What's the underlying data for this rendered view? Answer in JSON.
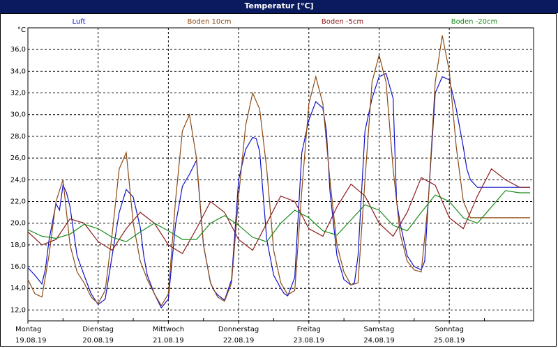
{
  "window": {
    "title": "Temperatur [°C]"
  },
  "chart_data": {
    "type": "line",
    "title": "Temperatur [°C]",
    "ylabel": "°C",
    "ylim": [
      11,
      38
    ],
    "yticks": [
      "12,0",
      "14,0",
      "16,0",
      "18,0",
      "20,0",
      "22,0",
      "24,0",
      "26,0",
      "28,0",
      "30,0",
      "32,0",
      "34,0",
      "36,0"
    ],
    "ytick_values": [
      12,
      14,
      16,
      18,
      20,
      22,
      24,
      26,
      28,
      30,
      32,
      34,
      36
    ],
    "xlim": [
      0,
      7.2
    ],
    "x_tick_values": [
      0,
      1,
      2,
      3,
      4,
      5,
      6
    ],
    "x_day_labels": [
      "Montag",
      "Dienstag",
      "Mittwoch",
      "Donnerstag",
      "Freitag",
      "Samstag",
      "Sonntag"
    ],
    "x_date_labels": [
      "19.08.19",
      "20.08.19",
      "21.08.19",
      "22.08.19",
      "23.08.19",
      "24.08.19",
      "25.08.19"
    ],
    "grid": true,
    "legend_position": "top",
    "series": [
      {
        "name": "Luft",
        "color": "#1010c8",
        "x": [
          0,
          0.1,
          0.2,
          0.25,
          0.3,
          0.4,
          0.45,
          0.5,
          0.55,
          0.6,
          0.7,
          0.8,
          0.9,
          1.0,
          1.1,
          1.2,
          1.25,
          1.3,
          1.4,
          1.5,
          1.6,
          1.65,
          1.7,
          1.8,
          1.9,
          2.0,
          2.1,
          2.2,
          2.3,
          2.4,
          2.5,
          2.6,
          2.65,
          2.7,
          2.8,
          2.9,
          3.0,
          3.1,
          3.2,
          3.25,
          3.3,
          3.4,
          3.5,
          3.6,
          3.65,
          3.7,
          3.8,
          3.9,
          4.0,
          4.1,
          4.2,
          4.25,
          4.3,
          4.4,
          4.5,
          4.6,
          4.65,
          4.7,
          4.8,
          4.9,
          5.0,
          5.1,
          5.2,
          5.25,
          5.3,
          5.4,
          5.5,
          5.6,
          5.65,
          5.7,
          5.8,
          5.9,
          6.0,
          6.1,
          6.2,
          6.25,
          6.3,
          6.4,
          6.5,
          6.6,
          6.65,
          6.7,
          6.8,
          6.9,
          7.0,
          7.1,
          7.15
        ],
        "y": [
          15.9,
          15.2,
          14.4,
          15.8,
          18.4,
          21.8,
          21.2,
          23.5,
          22.8,
          21.5,
          17.0,
          15.2,
          13.5,
          12.5,
          13.0,
          17.0,
          19.0,
          21.0,
          23.1,
          22.4,
          19.6,
          17.0,
          15.2,
          13.5,
          12.2,
          13.0,
          19.8,
          23.4,
          24.5,
          25.8,
          18.0,
          14.5,
          13.8,
          13.4,
          12.9,
          14.8,
          24.0,
          26.8,
          27.9,
          27.8,
          26.6,
          18.5,
          15.2,
          14.0,
          13.5,
          13.3,
          15.0,
          26.5,
          29.5,
          31.2,
          30.6,
          28.5,
          23.0,
          17.0,
          14.8,
          14.3,
          14.5,
          17.0,
          28.5,
          31.5,
          33.5,
          33.8,
          31.5,
          22.0,
          20.0,
          17.0,
          16.0,
          15.7,
          16.5,
          22.0,
          32.0,
          33.5,
          33.2,
          30.5,
          27.0,
          25.0,
          24.0,
          23.3,
          23.3,
          23.3,
          23.3,
          23.3,
          23.3,
          23.3,
          23.3,
          23.3,
          23.3
        ]
      },
      {
        "name": "Boden 10cm",
        "color": "#8b4a14",
        "x": [
          0,
          0.1,
          0.2,
          0.3,
          0.4,
          0.5,
          0.6,
          0.7,
          0.8,
          0.9,
          1.0,
          1.1,
          1.2,
          1.3,
          1.4,
          1.5,
          1.6,
          1.7,
          1.8,
          1.9,
          2.0,
          2.1,
          2.2,
          2.3,
          2.4,
          2.5,
          2.6,
          2.7,
          2.8,
          2.9,
          3.0,
          3.1,
          3.2,
          3.3,
          3.4,
          3.5,
          3.6,
          3.7,
          3.8,
          3.9,
          4.0,
          4.1,
          4.2,
          4.3,
          4.4,
          4.5,
          4.6,
          4.7,
          4.8,
          4.9,
          5.0,
          5.1,
          5.2,
          5.3,
          5.4,
          5.5,
          5.6,
          5.7,
          5.8,
          5.9,
          6.0,
          6.1,
          6.2,
          6.3,
          6.4,
          6.5,
          6.6,
          6.7,
          6.8,
          6.9,
          7.0,
          7.1,
          7.15
        ],
        "y": [
          14.8,
          13.5,
          13.2,
          17.0,
          22.0,
          24.0,
          18.0,
          15.5,
          14.5,
          13.2,
          12.6,
          13.8,
          19.0,
          25.0,
          26.5,
          20.0,
          16.5,
          14.8,
          13.5,
          12.4,
          13.5,
          22.0,
          28.5,
          30.0,
          26.0,
          18.0,
          14.5,
          13.2,
          12.8,
          14.5,
          22.5,
          29.0,
          32.0,
          30.5,
          25.0,
          17.5,
          14.5,
          13.4,
          13.8,
          23.0,
          31.0,
          33.5,
          31.0,
          24.0,
          18.0,
          15.5,
          14.3,
          14.5,
          24.0,
          33.0,
          35.5,
          33.0,
          25.0,
          19.0,
          16.5,
          15.7,
          15.5,
          22.0,
          33.0,
          37.3,
          34.0,
          27.0,
          22.0,
          20.5,
          20.5,
          20.5,
          20.5,
          20.5,
          20.5,
          20.5,
          20.5,
          20.5,
          20.5
        ]
      },
      {
        "name": "Boden -5cm",
        "color": "#8b1a1a",
        "x": [
          0,
          0.2,
          0.4,
          0.6,
          0.8,
          1.0,
          1.2,
          1.4,
          1.6,
          1.8,
          2.0,
          2.2,
          2.4,
          2.6,
          2.8,
          3.0,
          3.2,
          3.4,
          3.6,
          3.8,
          4.0,
          4.2,
          4.4,
          4.6,
          4.8,
          5.0,
          5.2,
          5.4,
          5.6,
          5.8,
          6.0,
          6.2,
          6.4,
          6.6,
          6.8,
          7.0,
          7.15
        ],
        "y": [
          19.2,
          18.0,
          18.5,
          20.4,
          20.0,
          18.3,
          17.5,
          19.5,
          21.0,
          20.0,
          18.0,
          17.2,
          19.5,
          22.0,
          21.0,
          18.5,
          17.5,
          20.0,
          22.5,
          22.0,
          19.5,
          18.8,
          21.5,
          23.6,
          22.5,
          20.0,
          18.8,
          21.0,
          24.2,
          23.5,
          20.5,
          19.5,
          22.5,
          25.0,
          24.0,
          23.3,
          23.3
        ]
      },
      {
        "name": "Boden -20cm",
        "color": "#1a8b1a",
        "x": [
          0,
          0.2,
          0.4,
          0.6,
          0.8,
          1.0,
          1.2,
          1.4,
          1.6,
          1.8,
          2.0,
          2.2,
          2.4,
          2.6,
          2.8,
          3.0,
          3.2,
          3.4,
          3.6,
          3.8,
          4.0,
          4.2,
          4.4,
          4.6,
          4.8,
          5.0,
          5.2,
          5.4,
          5.6,
          5.8,
          6.0,
          6.2,
          6.4,
          6.6,
          6.8,
          7.0,
          7.15
        ],
        "y": [
          19.4,
          18.8,
          18.6,
          19.0,
          19.9,
          19.5,
          18.7,
          18.3,
          19.2,
          20.0,
          19.3,
          18.5,
          18.5,
          20.0,
          20.7,
          19.8,
          18.7,
          18.3,
          20.0,
          21.2,
          20.5,
          19.3,
          18.9,
          20.3,
          21.7,
          21.2,
          19.8,
          19.3,
          21.0,
          22.6,
          22.0,
          20.5,
          20.0,
          21.5,
          23.0,
          22.8,
          22.8
        ]
      }
    ]
  }
}
